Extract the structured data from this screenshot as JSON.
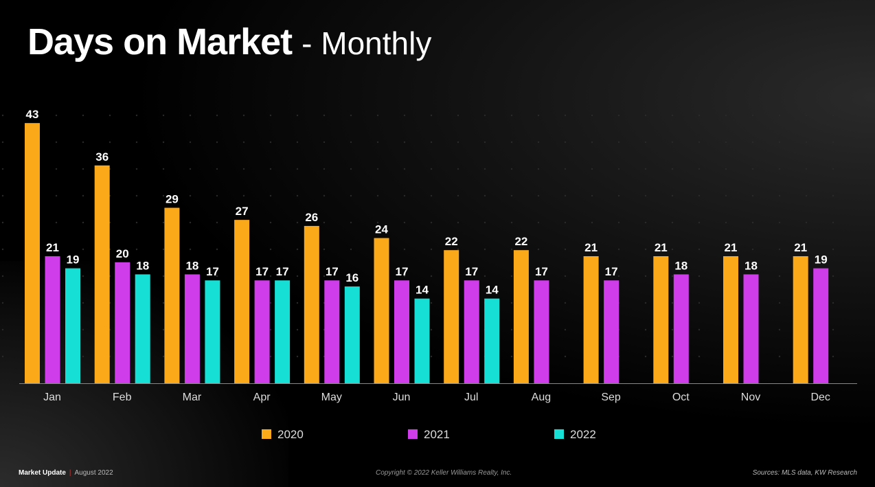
{
  "title": {
    "main": "Days on Market",
    "sub": "- Monthly"
  },
  "chart_data": {
    "type": "bar",
    "title": "Days on Market - Monthly",
    "categories": [
      "Jan",
      "Feb",
      "Mar",
      "Apr",
      "May",
      "Jun",
      "Jul",
      "Aug",
      "Sep",
      "Oct",
      "Nov",
      "Dec"
    ],
    "series": [
      {
        "name": "2020",
        "color": "#FBA919",
        "values": [
          43,
          36,
          29,
          27,
          26,
          24,
          22,
          22,
          21,
          21,
          21,
          21
        ]
      },
      {
        "name": "2021",
        "color": "#CF3DEA",
        "values": [
          21,
          20,
          18,
          17,
          17,
          17,
          17,
          17,
          17,
          18,
          18,
          19
        ]
      },
      {
        "name": "2022",
        "color": "#16DFD6",
        "values": [
          19,
          18,
          17,
          17,
          16,
          14,
          14,
          null,
          null,
          null,
          null,
          null
        ]
      }
    ],
    "ylim": [
      0,
      45
    ],
    "xlabel": "",
    "ylabel": "",
    "legend": "bottom-center",
    "grid": false
  },
  "footer": {
    "brand": "Market Update",
    "date": "August 2022",
    "copyright": "Copyright © 2022 Keller Williams Realty, Inc.",
    "sources": "Sources: MLS data, KW Research"
  }
}
